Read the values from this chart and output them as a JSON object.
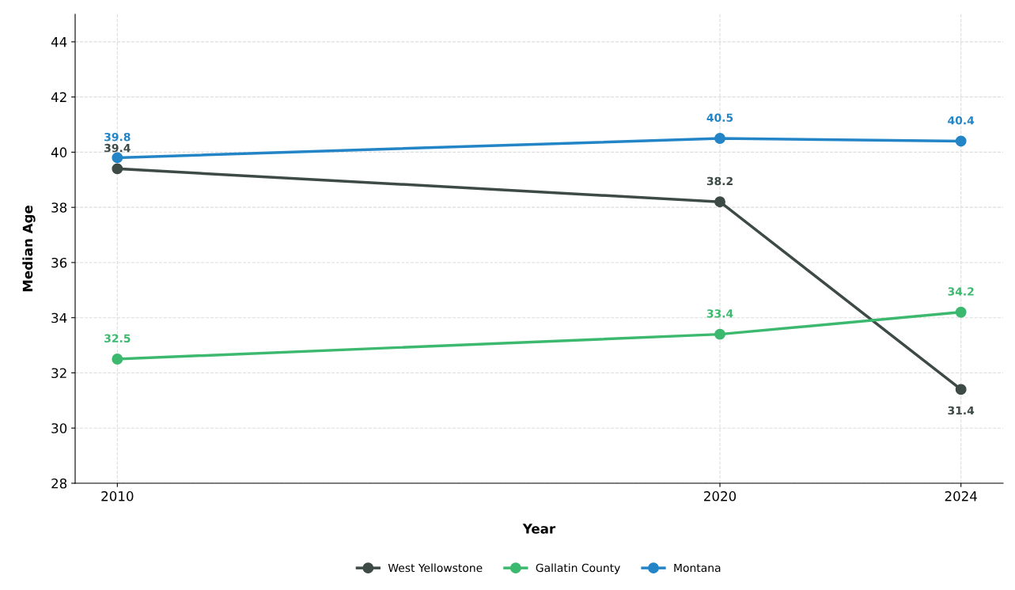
{
  "chart_data": {
    "type": "line",
    "xlabel": "Year",
    "ylabel": "Median Age",
    "x": [
      2010,
      2020,
      2024
    ],
    "series": [
      {
        "name": "West Yellowstone",
        "color": "#3d4a45",
        "values": [
          39.4,
          38.2,
          31.4
        ]
      },
      {
        "name": "Gallatin County",
        "color": "#3cb96f",
        "values": [
          32.5,
          33.4,
          34.2
        ]
      },
      {
        "name": "Montana",
        "color": "#2385c6",
        "values": [
          39.8,
          40.5,
          40.4
        ]
      }
    ],
    "xlim": [
      2009.3,
      2024.7
    ],
    "xticks": [
      2010,
      2020,
      2024
    ],
    "ylim": [
      28,
      45
    ],
    "yticks": [
      28,
      30,
      32,
      34,
      36,
      38,
      40,
      42,
      44
    ],
    "grid": true,
    "legend": "bottom",
    "marker": "circle",
    "line_style": "solid",
    "data_labels": true
  }
}
